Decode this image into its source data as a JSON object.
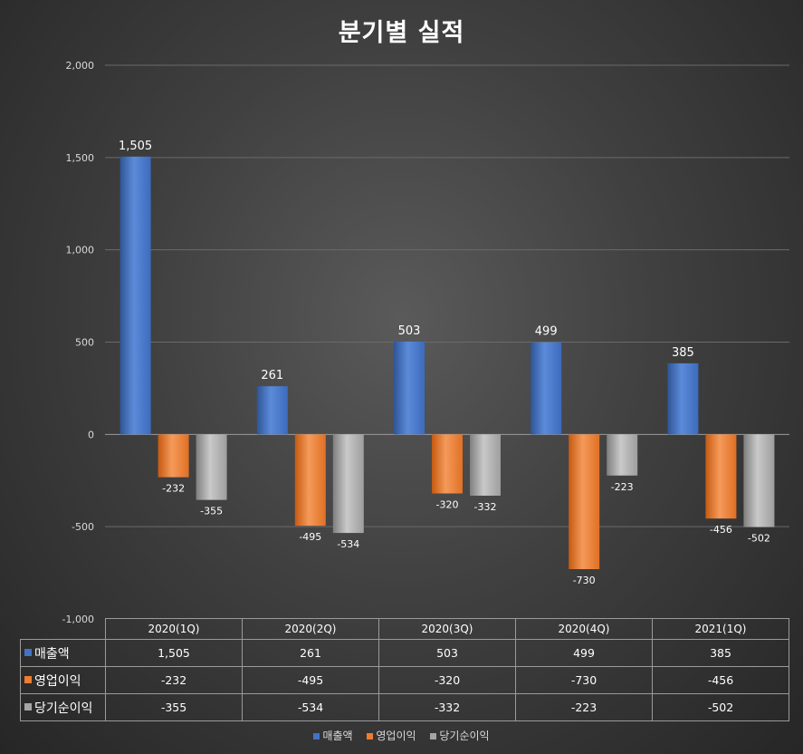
{
  "chart_data": {
    "type": "bar",
    "title": "분기별 실적",
    "categories": [
      "2020(1Q)",
      "2020(2Q)",
      "2020(3Q)",
      "2020(4Q)",
      "2021(1Q)"
    ],
    "series": [
      {
        "name": "매출액",
        "values": [
          1505,
          261,
          503,
          499,
          385
        ],
        "labels": [
          "1,505",
          "261",
          "503",
          "499",
          "385"
        ],
        "color": "#4472c4"
      },
      {
        "name": "영업이익",
        "values": [
          -232,
          -495,
          -320,
          -730,
          -456
        ],
        "labels": [
          "-232",
          "-495",
          "-320",
          "-730",
          "-456"
        ],
        "color": "#ed7d31"
      },
      {
        "name": "당기순이익",
        "values": [
          -355,
          -534,
          -332,
          -223,
          -502
        ],
        "labels": [
          "-355",
          "-534",
          "-332",
          "-223",
          "-502"
        ],
        "color": "#a5a5a5"
      }
    ],
    "ylim": [
      -1000,
      2000
    ],
    "yticks": [
      2000,
      1500,
      1000,
      500,
      0,
      -500,
      -1000
    ],
    "ytick_labels": [
      "2,000",
      "1,500",
      "1,000",
      "500",
      "0",
      "-500",
      "-1,000"
    ],
    "grid": true,
    "legend": "bottom",
    "data_table": true
  }
}
